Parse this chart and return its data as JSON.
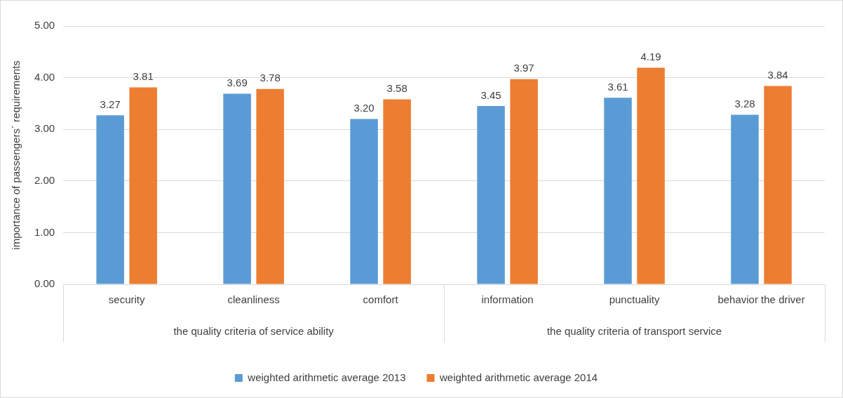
{
  "chart_data": {
    "type": "bar",
    "ylabel": "importance of passengers´ requirements",
    "categories": [
      "security",
      "cleanliness",
      "comfort",
      "information",
      "punctuality",
      "behavior the driver"
    ],
    "series": [
      {
        "name": "weighted arithmetic average 2013",
        "color": "#5b9bd5",
        "values": [
          3.27,
          3.69,
          3.2,
          3.45,
          3.61,
          3.28
        ],
        "value_labels": [
          "3.27",
          "3.69",
          "3.20",
          "3.45",
          "3.61",
          "3.28"
        ]
      },
      {
        "name": "weighted arithmetic average 2014",
        "color": "#ed7d31",
        "values": [
          3.81,
          3.78,
          3.58,
          3.97,
          4.19,
          3.84
        ],
        "value_labels": [
          "3.81",
          "3.78",
          "3.58",
          "3.97",
          "4.19",
          "3.84"
        ]
      }
    ],
    "ylim": [
      0,
      5
    ],
    "yticks": [
      {
        "value": 0,
        "label": "0.00"
      },
      {
        "value": 1,
        "label": "1.00"
      },
      {
        "value": 2,
        "label": "2.00"
      },
      {
        "value": 3,
        "label": "3.00"
      },
      {
        "value": 4,
        "label": "4.00"
      },
      {
        "value": 5,
        "label": "5.00"
      }
    ],
    "grid": "y",
    "legend": "bottom",
    "annotations": [
      "the quality criteria of service ability",
      "the quality criteria of transport service"
    ]
  }
}
